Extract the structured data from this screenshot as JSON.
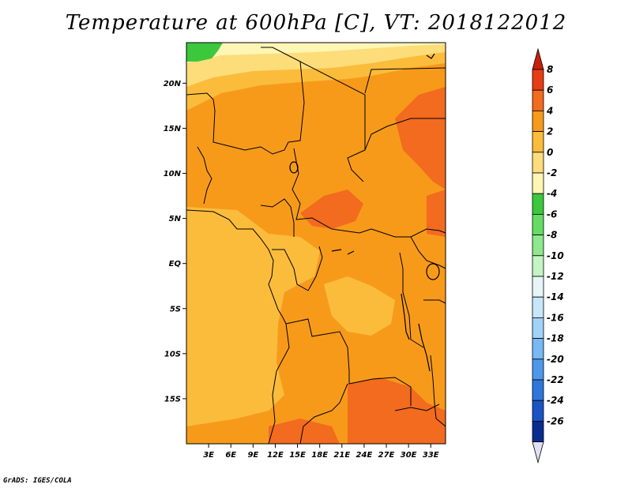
{
  "title": "Temperature at 600hPa [C], VT: 2018122012",
  "credit": "GrADS: IGES/COLA",
  "map": {
    "lon_range": [
      0,
      35
    ],
    "lat_range": [
      -20,
      24.5
    ],
    "lon_ticks": [
      "3E",
      "6E",
      "9E",
      "12E",
      "15E",
      "18E",
      "21E",
      "24E",
      "27E",
      "30E",
      "33E"
    ],
    "lat_ticks": [
      "20N",
      "15N",
      "10N",
      "5N",
      "EQ",
      "5S",
      "10S",
      "15S"
    ]
  },
  "colorbar": {
    "labels": [
      "8",
      "6",
      "4",
      "2",
      "0",
      "-2",
      "-4",
      "-6",
      "-8",
      "-10",
      "-12",
      "-14",
      "-16",
      "-18",
      "-20",
      "-22",
      "-24",
      "-26"
    ],
    "colors": [
      "#c81e0a",
      "#e83c14",
      "#f26b1e",
      "#f79a1a",
      "#fbbc3c",
      "#fddc7a",
      "#fef6b4",
      "#3cc83c",
      "#64dc64",
      "#8ee88e",
      "#c4f4c4",
      "#e6f6f6",
      "#c8e6fa",
      "#a2d2f8",
      "#78b8f4",
      "#4e98ec",
      "#2e76dc",
      "#1a54c4",
      "#0a2c90",
      "#e0e0f4"
    ]
  }
}
